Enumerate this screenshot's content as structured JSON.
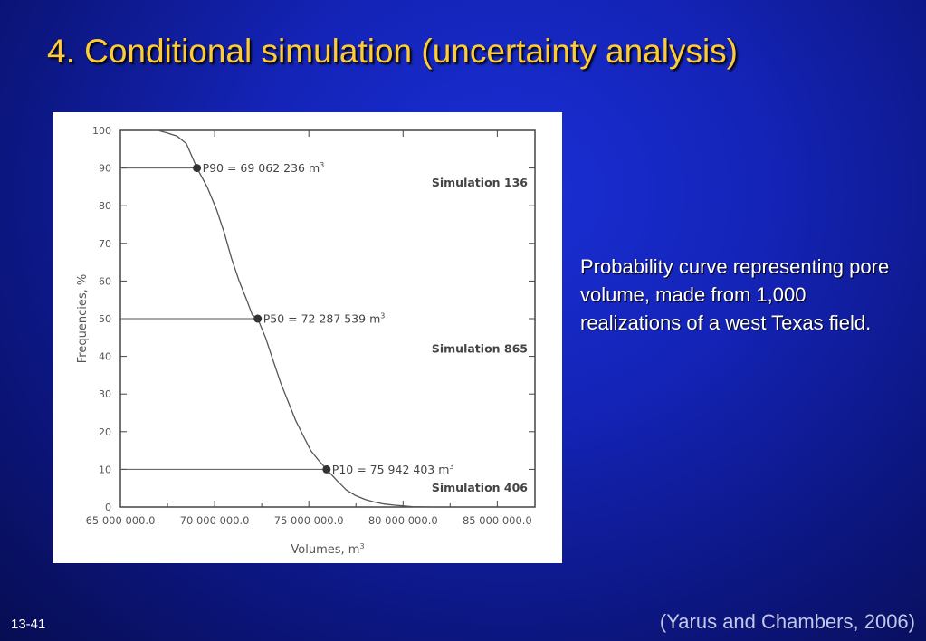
{
  "slide": {
    "title": "4. Conditional simulation (uncertainty analysis)",
    "caption": "Probability curve representing pore volume, made from 1,000 realizations of a west Texas field.",
    "slide_number": "13-41",
    "citation": "(Yarus and Chambers, 2006)",
    "colors": {
      "background": "#1424b8",
      "title": "#ffcc33",
      "text": "#ffffff"
    }
  },
  "chart_data": {
    "type": "line",
    "title": "",
    "xlabel": "Volumes, m",
    "xlabel_sup": "3",
    "ylabel": "Frequencies, %",
    "xlim": [
      65000000,
      87000000
    ],
    "ylim": [
      0,
      100
    ],
    "x_ticks": [
      65000000,
      70000000,
      75000000,
      80000000,
      85000000
    ],
    "x_tick_labels": [
      "65 000 000.0",
      "70 000 000.0",
      "75 000 000.0",
      "80 000 000.0",
      "85 000 000.0"
    ],
    "y_ticks": [
      0,
      10,
      20,
      30,
      40,
      50,
      60,
      70,
      80,
      90,
      100
    ],
    "y_tick_labels": [
      "0",
      "10",
      "20",
      "30",
      "40",
      "50",
      "60",
      "70",
      "80",
      "90",
      "100"
    ],
    "grid": false,
    "series": [
      {
        "x": [
          67000000,
          67500000,
          68000000,
          68500000,
          69062236,
          69600000,
          70100000,
          70500000,
          70900000,
          71300000,
          71700000,
          72000000,
          72287539,
          72700000,
          73100000,
          73500000,
          73900000,
          74300000,
          74700000,
          75100000,
          75500000,
          75942403,
          76500000,
          77000000,
          77500000,
          78000000,
          78500000,
          79000000,
          79500000,
          80000000,
          80500000,
          81500000
        ],
        "y": [
          100,
          99.3,
          98.5,
          96.5,
          90,
          85,
          79,
          73,
          66,
          60,
          55,
          51,
          50,
          45,
          39,
          33,
          28,
          23,
          19,
          15,
          12.5,
          10,
          7,
          4.5,
          3,
          2,
          1.3,
          0.8,
          0.5,
          0.3,
          0.1,
          0
        ]
      }
    ],
    "markers": [
      {
        "x": 69062236,
        "y": 90,
        "label": "P90 = 69 062 236 m",
        "sup": "3"
      },
      {
        "x": 72287539,
        "y": 50,
        "label": "P50 = 72 287 539 m",
        "sup": "3"
      },
      {
        "x": 75942403,
        "y": 10,
        "label": "P10 = 75 942 403 m",
        "sup": "3"
      }
    ],
    "annotations": [
      {
        "text": "Simulation 136",
        "y": 86
      },
      {
        "text": "Simulation 865",
        "y": 42
      },
      {
        "text": "Simulation 406",
        "y": 5
      }
    ]
  }
}
